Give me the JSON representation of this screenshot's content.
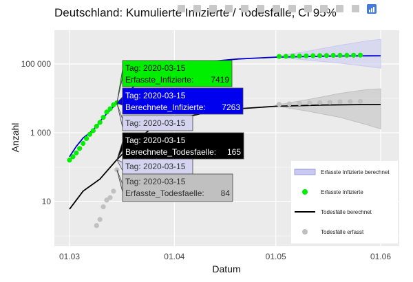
{
  "chart_data": {
    "type": "line",
    "title": "Deutschland: Kumulierte Infizierte / Todesfälle, CI 95%",
    "xlabel": "Datum",
    "ylabel": "Anzahl",
    "x_ticks": [
      "01.03",
      "01.04",
      "01.05",
      "01.06"
    ],
    "y_scale": "log",
    "y_ticks": [
      "10",
      "1 000",
      "100 000"
    ],
    "ylim": [
      1,
      1000000
    ],
    "grid": true,
    "legend_position": "bottom-right",
    "legend": [
      {
        "label": "Erfasste Infizierte berechnet",
        "kind": "band",
        "color": "#c9c9f2"
      },
      {
        "label": "Erfasste Infizierte",
        "kind": "points",
        "color": "#00ee00"
      },
      {
        "label": "Todesfälle berechnet",
        "kind": "line",
        "color": "#000000"
      },
      {
        "label": "Todesfälle erfasst",
        "kind": "points",
        "color": "#c0c0c0"
      }
    ],
    "series": [
      {
        "name": "Erfasste Infizierte",
        "style": "points",
        "color": "#00ee00",
        "x": [
          "2020-03-01",
          "2020-03-02",
          "2020-03-03",
          "2020-03-04",
          "2020-03-05",
          "2020-03-06",
          "2020-03-07",
          "2020-03-08",
          "2020-03-09",
          "2020-03-10",
          "2020-03-11",
          "2020-03-12",
          "2020-03-13",
          "2020-03-14",
          "2020-03-15",
          "2020-05-02",
          "2020-05-04",
          "2020-05-06",
          "2020-05-08",
          "2020-05-10",
          "2020-05-12",
          "2020-05-14",
          "2020-05-16",
          "2020-05-18",
          "2020-05-20",
          "2020-05-22",
          "2020-05-24",
          "2020-05-26"
        ],
        "y": [
          160,
          200,
          260,
          350,
          490,
          680,
          900,
          1150,
          1550,
          2000,
          2800,
          4000,
          5000,
          6500,
          7419,
          165000,
          167000,
          169000,
          171000,
          172500,
          174000,
          175500,
          176500,
          177500,
          178500,
          179000,
          179500,
          180000
        ]
      },
      {
        "name": "Todesfälle erfasst",
        "style": "points",
        "color": "#c0c0c0",
        "x": [
          "2020-03-09",
          "2020-03-10",
          "2020-03-11",
          "2020-03-12",
          "2020-03-13",
          "2020-03-14",
          "2020-03-15",
          "2020-05-02",
          "2020-05-05",
          "2020-05-08",
          "2020-05-11",
          "2020-05-14",
          "2020-05-17",
          "2020-05-20",
          "2020-05-23",
          "2020-05-26"
        ],
        "y": [
          2,
          3,
          7,
          11,
          13,
          20,
          84,
          6700,
          6900,
          7100,
          7300,
          7500,
          7700,
          7900,
          8050,
          8200
        ]
      },
      {
        "name": "Erfasste Infizierte berechnet",
        "style": "line",
        "color": "#0000cc",
        "x": [
          "2020-03-01",
          "2020-03-03",
          "2020-03-05",
          "2020-03-08",
          "2020-03-11",
          "2020-03-15",
          "2020-03-20",
          "2020-03-25",
          "2020-04-01",
          "2020-04-10",
          "2020-04-20",
          "2020-05-01",
          "2020-05-15",
          "2020-05-28",
          "2020-06-01"
        ],
        "y": [
          200,
          400,
          700,
          1200,
          2800,
          7263,
          22000,
          45000,
          80000,
          115000,
          140000,
          158000,
          168000,
          172000,
          173000
        ]
      },
      {
        "name": "Todesfälle berechnet",
        "style": "line",
        "color": "#000000",
        "x": [
          "2020-03-01",
          "2020-03-05",
          "2020-03-10",
          "2020-03-15",
          "2020-03-20",
          "2020-03-25",
          "2020-04-01",
          "2020-04-10",
          "2020-04-20",
          "2020-05-01",
          "2020-05-15",
          "2020-05-28",
          "2020-06-01"
        ],
        "y": [
          6,
          20,
          45,
          165,
          500,
          1300,
          2400,
          3800,
          5000,
          5900,
          6400,
          6600,
          6650
        ]
      },
      {
        "name": "Erfasste Infizierte berechnet (CI)",
        "style": "band",
        "color": "#c9c9f2",
        "x": [
          "2020-05-01",
          "2020-05-10",
          "2020-05-20",
          "2020-05-28",
          "2020-06-01"
        ],
        "lower": [
          160000,
          130000,
          105000,
          85000,
          75000
        ],
        "upper": [
          166000,
          230000,
          350000,
          470000,
          520000
        ]
      },
      {
        "name": "Todesfälle berechnet (CI)",
        "style": "band",
        "color": "#c0c0c0",
        "x": [
          "2020-05-01",
          "2020-05-10",
          "2020-05-20",
          "2020-05-28",
          "2020-06-01"
        ],
        "lower": [
          6000,
          4300,
          2800,
          1700,
          1300
        ],
        "upper": [
          6400,
          9000,
          14000,
          18000,
          19000
        ]
      }
    ],
    "tooltips": [
      {
        "day_label": "Tag: 2020-03-15",
        "value_label": "Erfasste_Infizierte:",
        "value": "7419",
        "bg": "#00ee00",
        "fg": "#000000"
      },
      {
        "day_label": "Tag: 2020-03-15",
        "value_label": "Berechnete_Infizierte:",
        "value": "7263",
        "bg": "#0000ee",
        "fg": "#ffffff"
      },
      {
        "day_label": "Tag: 2020-03-15",
        "value_label": "",
        "value": "",
        "bg": "#d4d4f0",
        "fg": "#333333"
      },
      {
        "day_label": "Tag: 2020-03-15",
        "value_label": "Berechnete_Todesfaelle:",
        "value": "165",
        "bg": "#000000",
        "fg": "#ffffff"
      },
      {
        "day_label": "Tag: 2020-03-15",
        "value_label": "",
        "value": "",
        "bg": "#d4d4f0",
        "fg": "#333333"
      },
      {
        "day_label": "Tag: 2020-03-15",
        "value_label": "Erfasste_Todesfaelle:",
        "value": "84",
        "bg": "#c0c0c0",
        "fg": "#333333"
      }
    ]
  },
  "modebar": {
    "icons": [
      "camera-icon",
      "zoom-icon",
      "pan-icon",
      "box-select-icon",
      "lasso-icon",
      "zoom-in-icon",
      "zoom-out-icon",
      "autoscale-icon",
      "reset-axes-icon",
      "spike-lines-icon",
      "hover-closest-icon",
      "hover-compare-icon",
      "plotly-logo-icon"
    ]
  }
}
